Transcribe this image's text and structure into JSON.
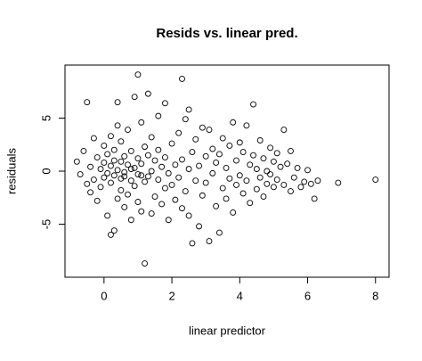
{
  "chart_data": {
    "type": "scatter",
    "title": "Resids vs. linear pred.",
    "x_label": "linear predictor",
    "y_label": "residuals",
    "xlim": [
      -1.15,
      8.4
    ],
    "ylim": [
      -10,
      10
    ],
    "xticks": [
      0,
      2,
      4,
      6,
      8
    ],
    "yticks": [
      -5,
      0,
      5
    ],
    "color": "#000000",
    "x": [
      -0.8,
      -0.7,
      -0.6,
      -0.5,
      -0.5,
      -0.4,
      -0.4,
      -0.3,
      -0.3,
      -0.2,
      -0.2,
      -0.1,
      -0.1,
      0.0,
      0.0,
      0.0,
      0.1,
      0.1,
      0.1,
      0.2,
      0.2,
      0.2,
      0.2,
      0.3,
      0.3,
      0.3,
      0.3,
      0.4,
      0.4,
      0.4,
      0.4,
      0.5,
      0.5,
      0.5,
      0.5,
      0.6,
      0.6,
      0.6,
      0.7,
      0.7,
      0.7,
      0.8,
      0.8,
      0.8,
      0.9,
      0.9,
      0.9,
      1.0,
      1.0,
      1.0,
      1.0,
      1.1,
      1.1,
      1.1,
      1.2,
      1.2,
      1.2,
      1.3,
      1.3,
      1.3,
      1.4,
      1.4,
      1.4,
      1.5,
      1.5,
      1.6,
      1.6,
      1.6,
      1.7,
      1.7,
      1.8,
      1.8,
      1.8,
      1.9,
      1.9,
      2.0,
      2.0,
      2.1,
      2.1,
      2.2,
      2.2,
      2.3,
      2.3,
      2.3,
      2.4,
      2.4,
      2.5,
      2.5,
      2.5,
      2.6,
      2.6,
      2.7,
      2.7,
      2.8,
      2.8,
      2.9,
      2.9,
      3.0,
      3.0,
      3.1,
      3.1,
      3.2,
      3.2,
      3.3,
      3.3,
      3.4,
      3.4,
      3.5,
      3.5,
      3.6,
      3.6,
      3.7,
      3.7,
      3.8,
      3.8,
      3.9,
      3.9,
      4.0,
      4.0,
      4.1,
      4.1,
      4.2,
      4.2,
      4.3,
      4.3,
      4.4,
      4.4,
      4.5,
      4.5,
      4.6,
      4.6,
      4.7,
      4.7,
      4.8,
      4.8,
      4.9,
      4.9,
      5.0,
      5.0,
      5.1,
      5.1,
      5.2,
      5.3,
      5.3,
      5.4,
      5.5,
      5.5,
      5.6,
      5.7,
      5.8,
      5.9,
      6.0,
      6.1,
      6.2,
      6.3,
      6.9,
      8.0,
      0.6,
      0.8,
      1.1
    ],
    "y": [
      0.9,
      -0.3,
      1.9,
      6.5,
      -1.2,
      0.4,
      -2.0,
      3.1,
      -0.8,
      1.3,
      -2.8,
      0.2,
      -1.5,
      2.4,
      -0.6,
      0.8,
      -4.2,
      1.6,
      -0.2,
      -6.0,
      3.3,
      -1.1,
      0.5,
      -5.6,
      2.0,
      -0.4,
      1.0,
      6.5,
      -2.6,
      0.1,
      4.3,
      -1.8,
      0.9,
      -0.7,
      2.8,
      -3.4,
      1.4,
      -0.1,
      3.9,
      -2.2,
      0.6,
      -4.6,
      1.9,
      -0.9,
      7.0,
      -1.4,
      0.3,
      9.1,
      -2.9,
      1.2,
      -0.3,
      4.6,
      -3.8,
      0.7,
      -8.7,
      2.3,
      -1.0,
      7.3,
      -0.5,
      1.5,
      -4.0,
      3.2,
      0.0,
      -2.4,
      1.0,
      5.2,
      -0.8,
      2.0,
      -3.1,
      0.4,
      6.4,
      -1.6,
      1.3,
      -0.2,
      -4.6,
      2.6,
      -1.3,
      0.6,
      -2.7,
      3.6,
      -0.6,
      8.7,
      1.1,
      -3.5,
      4.9,
      -1.9,
      5.8,
      0.2,
      -4.2,
      -6.8,
      1.8,
      -0.9,
      3.0,
      -5.2,
      0.5,
      4.1,
      -2.3,
      1.4,
      -1.1,
      -6.6,
      3.9,
      -0.2,
      2.1,
      -3.3,
      0.8,
      -5.8,
      1.6,
      -1.6,
      3.1,
      0.3,
      -2.6,
      2.4,
      -0.7,
      4.6,
      -3.9,
      1.0,
      -1.3,
      2.7,
      -0.4,
      -2.1,
      1.8,
      4.3,
      -0.9,
      0.6,
      -3.0,
      6.3,
      1.5,
      -1.7,
      0.2,
      2.9,
      -0.6,
      -2.4,
      1.2,
      0.0,
      -1.2,
      2.2,
      -0.3,
      0.9,
      -1.5,
      1.7,
      -0.8,
      0.4,
      3.9,
      -1.3,
      0.7,
      -1.9,
      1.9,
      -0.6,
      0.3,
      -1.5,
      -1.0,
      0.1,
      -1.2,
      -2.6,
      -0.9,
      -1.1,
      -0.8,
      -0.5,
      0.2,
      -0.4
    ]
  }
}
